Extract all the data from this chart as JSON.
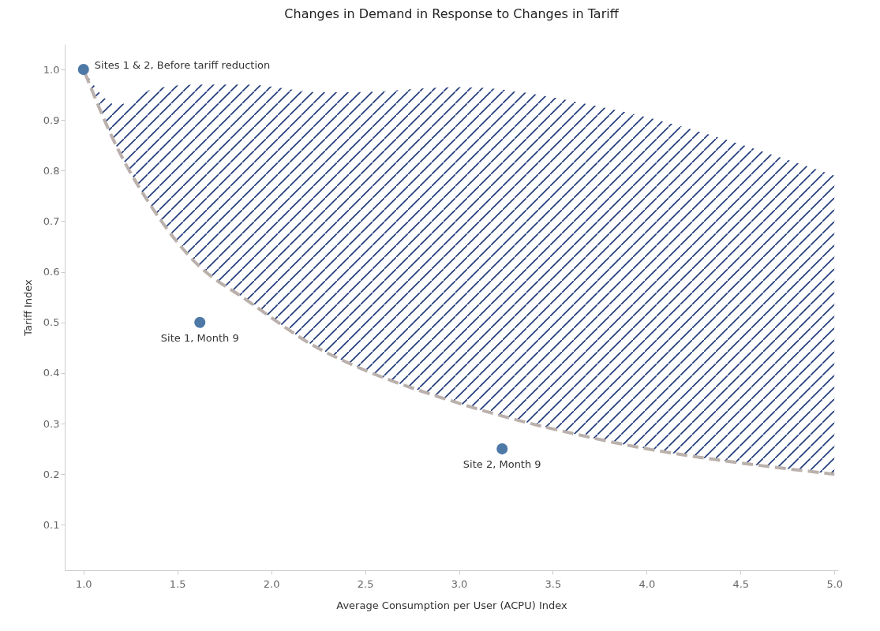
{
  "chart_data": {
    "type": "scatter",
    "title": "Changes in Demand in Response to Changes in Tariff",
    "xlabel": "Average Consumption per User (ACPU) Index",
    "ylabel": "Tariff Index",
    "xlim": [
      0.9,
      5.02
    ],
    "ylim": [
      0.01,
      1.05
    ],
    "xticks": [
      {
        "value": 1,
        "label": "1.0"
      },
      1.5,
      {
        "value": 2,
        "label": "2.0"
      },
      2.5,
      {
        "value": 3,
        "label": "3.0"
      },
      3.5,
      {
        "value": 4,
        "label": "4.0"
      },
      4.5,
      {
        "value": 5,
        "label": "5.0"
      }
    ],
    "yticks": [
      0.1,
      0.2,
      0.3,
      0.4,
      0.5,
      0.6,
      0.7,
      0.8,
      0.9,
      {
        "value": 1,
        "label": "1.0"
      }
    ],
    "grid": false,
    "legend": false,
    "series": [
      {
        "type": "line",
        "color": "#bab0ac",
        "line_style": "dashed",
        "marker": "none",
        "x": [
          1,
          1.18,
          1.36,
          1.6,
          1.87,
          2.26,
          2.41,
          3.01,
          3.77,
          5.0
        ],
        "values": [
          1,
          0.845,
          0.73,
          0.617,
          0.544,
          0.447,
          0.42,
          0.339,
          0.267,
          0.2
        ],
        "lower": [
          1,
          0.845,
          0.73,
          0.617,
          0.544,
          0.447,
          0.42,
          0.339,
          0.267,
          0.2
        ],
        "upper": [
          1,
          0.93,
          0.96,
          0.97,
          0.97,
          0.955,
          0.955,
          0.965,
          0.925,
          0.79
        ]
      },
      {
        "type": "scatter",
        "color": "#4e79a7",
        "marker": "circle",
        "x": [
          1,
          1.62,
          3.23
        ],
        "values": [
          1,
          0.5,
          0.25
        ]
      }
    ],
    "annotations": [
      {
        "text": "Sites 1 & 2, Before tariff reduction",
        "x": 1,
        "y": 1
      },
      {
        "text": "Site 1, Month 9",
        "x": 1.62,
        "y": 0.5
      },
      {
        "text": "Site 2, Month 9",
        "x": 3.23,
        "y": 0.25
      }
    ]
  }
}
